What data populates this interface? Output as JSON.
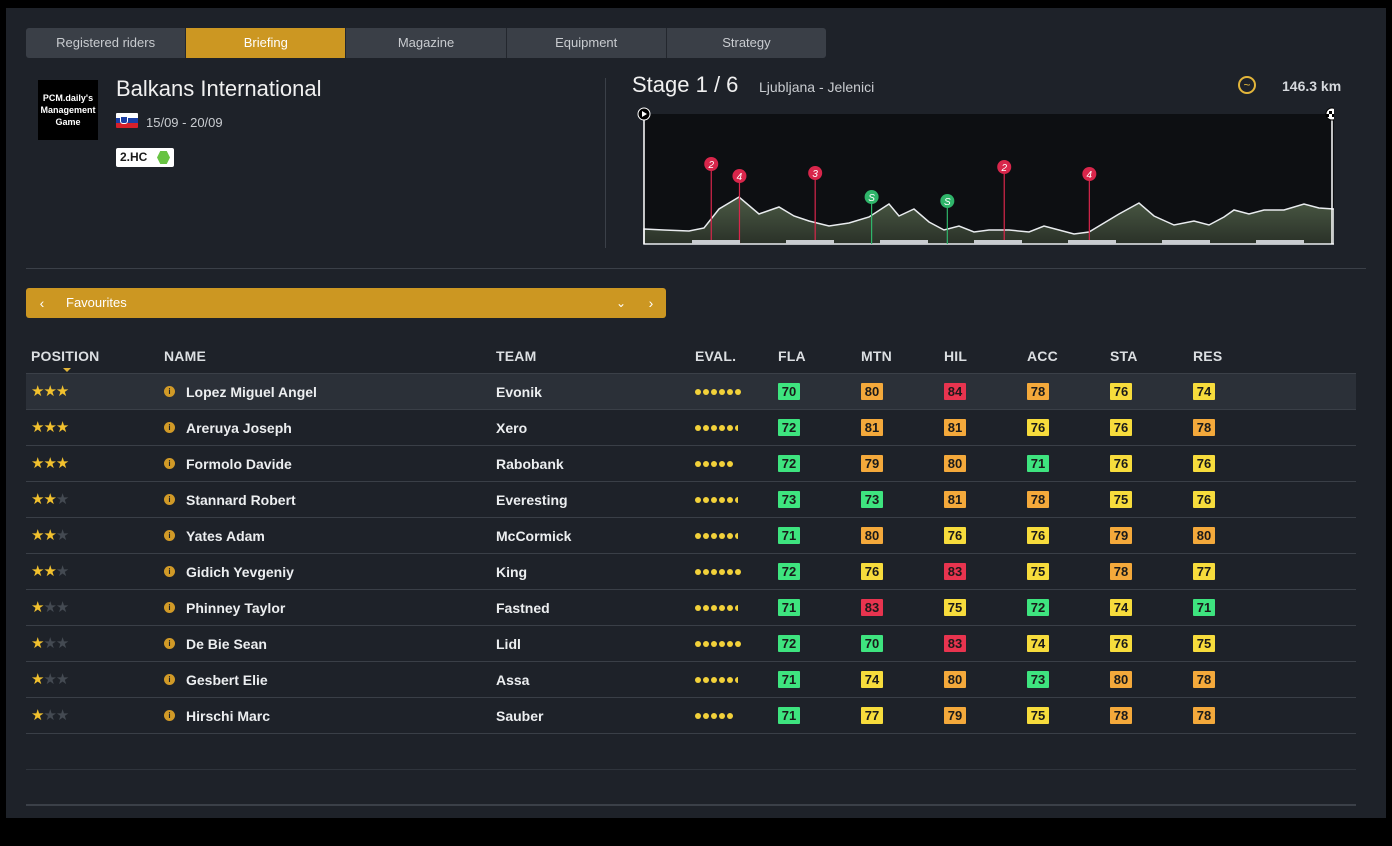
{
  "tabs": [
    {
      "label": "Registered riders",
      "active": false
    },
    {
      "label": "Briefing",
      "active": true
    },
    {
      "label": "Magazine",
      "active": false
    },
    {
      "label": "Equipment",
      "active": false
    },
    {
      "label": "Strategy",
      "active": false
    }
  ],
  "race": {
    "logo_lines": [
      "PCM.daily's",
      "Management",
      "Game"
    ],
    "name": "Balkans International",
    "dates": "15/09 - 20/09",
    "category": "2.HC",
    "flag": "slovenia-flag"
  },
  "stage": {
    "title": "Stage 1 / 6",
    "route": "Ljubljana -  Jelenici",
    "distance": "146.3 km",
    "profile_icon": "hilly-profile-icon",
    "climbs": [
      {
        "cat": "2",
        "km": 14.3,
        "color": "#d8264b"
      },
      {
        "cat": "4",
        "km": 20.3,
        "color": "#d8264b"
      },
      {
        "cat": "3",
        "km": 36.4,
        "color": "#d8264b"
      },
      {
        "cat": "S",
        "km": 48.4,
        "color": "#2fb56a"
      },
      {
        "cat": "S",
        "km": 64.5,
        "color": "#2fb56a"
      },
      {
        "cat": "2",
        "km": 76.6,
        "color": "#d8264b"
      },
      {
        "cat": "4",
        "km": 94.7,
        "color": "#d8264b"
      }
    ]
  },
  "favourites": {
    "label": "Favourites",
    "prev_icon": "chevron-left-icon",
    "dropdown_icon": "chevron-down-icon",
    "next_icon": "chevron-right-icon"
  },
  "table": {
    "headers": {
      "position": "POSITION",
      "name": "NAME",
      "team": "TEAM",
      "eval": "EVAL.",
      "fla": "FLA",
      "mtn": "MTN",
      "hil": "HIL",
      "acc": "ACC",
      "sta": "STA",
      "res": "RES"
    },
    "rows": [
      {
        "stars": 3,
        "name": "Lopez Miguel Angel",
        "team": "Evonik",
        "eval": 6,
        "fla": "70",
        "mtn": "80",
        "hil": "84",
        "acc": "78",
        "sta": "76",
        "res": "74"
      },
      {
        "stars": 3,
        "name": "Areruya Joseph",
        "team": "Xero",
        "eval": 5.5,
        "fla": "72",
        "mtn": "81",
        "hil": "81",
        "acc": "76",
        "sta": "76",
        "res": "78"
      },
      {
        "stars": 3,
        "name": "Formolo Davide",
        "team": "Rabobank",
        "eval": 5,
        "fla": "72",
        "mtn": "79",
        "hil": "80",
        "acc": "71",
        "sta": "76",
        "res": "76"
      },
      {
        "stars": 2,
        "name": "Stannard Robert",
        "team": "Everesting",
        "eval": 5.5,
        "fla": "73",
        "mtn": "73",
        "hil": "81",
        "acc": "78",
        "sta": "75",
        "res": "76"
      },
      {
        "stars": 2,
        "name": "Yates Adam",
        "team": "McCormick",
        "eval": 5.5,
        "fla": "71",
        "mtn": "80",
        "hil": "76",
        "acc": "76",
        "sta": "79",
        "res": "80"
      },
      {
        "stars": 2,
        "name": "Gidich Yevgeniy",
        "team": "King",
        "eval": 6,
        "fla": "72",
        "mtn": "76",
        "hil": "83",
        "acc": "75",
        "sta": "78",
        "res": "77"
      },
      {
        "stars": 1,
        "name": "Phinney Taylor",
        "team": "Fastned",
        "eval": 5.5,
        "fla": "71",
        "mtn": "83",
        "hil": "75",
        "acc": "72",
        "sta": "74",
        "res": "71"
      },
      {
        "stars": 1,
        "name": "De Bie Sean",
        "team": "Lidl",
        "eval": 6,
        "fla": "72",
        "mtn": "70",
        "hil": "83",
        "acc": "74",
        "sta": "76",
        "res": "75"
      },
      {
        "stars": 1,
        "name": "Gesbert Elie",
        "team": "Assa",
        "eval": 5.5,
        "fla": "71",
        "mtn": "74",
        "hil": "80",
        "acc": "73",
        "sta": "80",
        "res": "78"
      },
      {
        "stars": 1,
        "name": "Hirschi Marc",
        "team": "Sauber",
        "eval": 5,
        "fla": "71",
        "mtn": "77",
        "hil": "79",
        "acc": "75",
        "sta": "78",
        "res": "78"
      }
    ]
  },
  "colors": {
    "accent": "#cc9722",
    "stat_red": "#e8344f",
    "stat_orange": "#f4a93b",
    "stat_yellow": "#f7dc3c",
    "stat_green": "#3ee47f",
    "stat_green_dark": "#2ed47a"
  }
}
